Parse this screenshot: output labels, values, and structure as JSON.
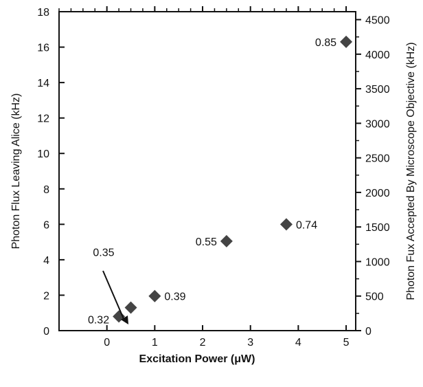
{
  "chart_data": {
    "type": "scatter",
    "xlabel": "Excitation Power (μW)",
    "ylabel_left": "Photon Flux Leaving Alice (kHz)",
    "ylabel_right": "Photon Fux Accepted By Microscope Objective (kHz)",
    "xlim": [
      -1,
      5.2
    ],
    "ylim_left": [
      0,
      18
    ],
    "ylim_right": [
      0,
      4615
    ],
    "x_ticks": [
      "0",
      "1",
      "2",
      "3",
      "4",
      "5"
    ],
    "y_left_ticks": [
      "0",
      "2",
      "4",
      "6",
      "8",
      "10",
      "12",
      "14",
      "16",
      "18"
    ],
    "y_right_ticks": [
      "0",
      "500",
      "1000",
      "1500",
      "2000",
      "2500",
      "3000",
      "3500",
      "4000",
      "4500"
    ],
    "series": [
      {
        "marker": "diamond",
        "color": "#444444",
        "points": [
          {
            "x": 0.25,
            "y": 0.8,
            "label": "0.32"
          },
          {
            "x": 0.5,
            "y": 1.3,
            "label": "0.35"
          },
          {
            "x": 1.0,
            "y": 1.95,
            "label": "0.39"
          },
          {
            "x": 2.5,
            "y": 5.05,
            "label": "0.55"
          },
          {
            "x": 3.75,
            "y": 6.0,
            "label": "0.74"
          },
          {
            "x": 5.0,
            "y": 16.3,
            "label": "0.85"
          }
        ]
      }
    ],
    "grid": false
  }
}
